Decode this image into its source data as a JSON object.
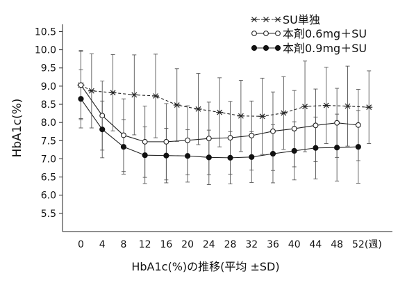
{
  "chart_data": {
    "type": "line",
    "xlabel": "HbA1c(%)の推移(平均 ±SD)",
    "ylabel": "HbA1c(%)",
    "x_unit": "(週)",
    "ylim": [
      5.0,
      10.7
    ],
    "yticks": [
      5.5,
      6.0,
      6.5,
      7.0,
      7.5,
      8.0,
      8.5,
      9.0,
      9.5,
      10.0,
      10.5
    ],
    "ytick_labels": [
      "5.5",
      "6.0",
      "6.5",
      "7.0",
      "7.5",
      "8.0",
      "8.5",
      "9.0",
      "9.5",
      "10.0",
      "10.5"
    ],
    "xticks": [
      0,
      4,
      8,
      12,
      16,
      20,
      24,
      28,
      32,
      36,
      40,
      44,
      48,
      52
    ],
    "xtick_labels": [
      "0",
      "4",
      "8",
      "12",
      "16",
      "20",
      "24",
      "28",
      "32",
      "36",
      "40",
      "44",
      "48",
      "52"
    ],
    "legend_position": "top-right",
    "grid": false,
    "series": [
      {
        "name": "SU単独",
        "marker": "asterisk",
        "line": "dashed",
        "x": [
          0,
          2,
          6,
          10,
          14,
          18,
          22,
          26,
          30,
          34,
          38,
          42,
          46,
          50,
          54
        ],
        "y": [
          9.03,
          8.87,
          8.82,
          8.76,
          8.73,
          8.48,
          8.37,
          8.28,
          8.18,
          8.17,
          8.26,
          8.44,
          8.47,
          8.45,
          8.42
        ],
        "sd": [
          0.95,
          1.02,
          1.05,
          1.1,
          1.15,
          1.0,
          0.98,
          0.95,
          0.98,
          1.05,
          1.0,
          1.25,
          1.05,
          1.1,
          1.0
        ]
      },
      {
        "name": "本剤0.6mg＋SU",
        "marker": "open-circle",
        "line": "solid",
        "x": [
          0,
          4,
          8,
          12,
          16,
          20,
          24,
          28,
          32,
          36,
          40,
          44,
          48,
          52
        ],
        "y": [
          9.03,
          8.19,
          7.65,
          7.47,
          7.47,
          7.51,
          7.56,
          7.58,
          7.64,
          7.76,
          7.83,
          7.92,
          7.99,
          7.93
        ],
        "sd": [
          0.92,
          0.95,
          1.0,
          0.98,
          1.05,
          0.95,
          1.0,
          1.0,
          0.95,
          1.08,
          1.05,
          1.0,
          0.95,
          0.98
        ]
      },
      {
        "name": "本剤0.9mg＋SU",
        "marker": "filled-circle",
        "line": "solid",
        "x": [
          0,
          4,
          8,
          12,
          16,
          20,
          24,
          28,
          32,
          36,
          40,
          44,
          48,
          52
        ],
        "y": [
          8.65,
          7.81,
          7.33,
          7.1,
          7.09,
          7.08,
          7.04,
          7.03,
          7.05,
          7.14,
          7.22,
          7.3,
          7.31,
          7.33
        ],
        "sd": [
          0.8,
          0.78,
          0.75,
          0.78,
          0.75,
          0.72,
          0.75,
          0.72,
          0.7,
          0.8,
          0.8,
          0.85,
          0.92,
          1.0
        ]
      }
    ]
  }
}
